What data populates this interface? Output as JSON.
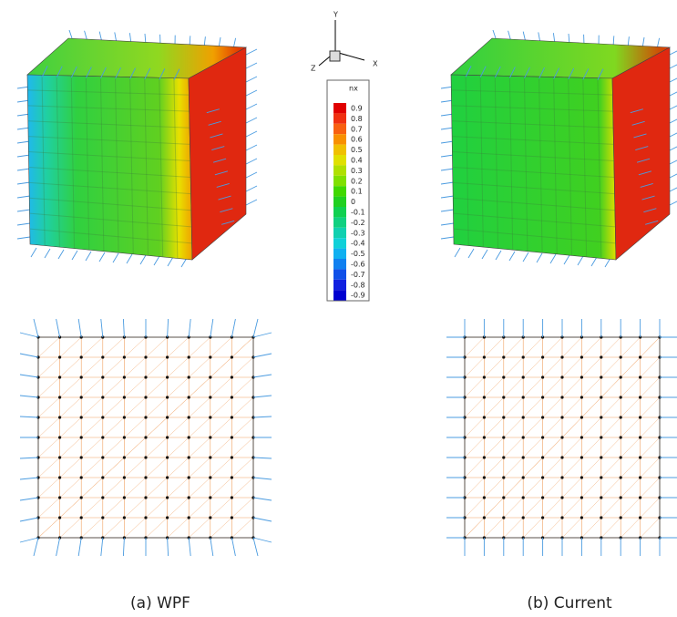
{
  "axes_triad": {
    "y": "Y",
    "x": "X",
    "z": "Z"
  },
  "legend": {
    "title": "nx",
    "levels": [
      0.9,
      0.8,
      0.7,
      0.6,
      0.5,
      0.4,
      0.3,
      0.2,
      0.1,
      0,
      -0.1,
      -0.2,
      -0.3,
      -0.4,
      -0.5,
      -0.6,
      -0.7,
      -0.8,
      -0.9
    ],
    "colors": [
      "#e00000",
      "#f03010",
      "#f86010",
      "#f89000",
      "#f0c000",
      "#e0e000",
      "#b0e000",
      "#80e000",
      "#40d800",
      "#20d020",
      "#10d050",
      "#10d080",
      "#10d0b0",
      "#10d0d8",
      "#10b0f0",
      "#1080f0",
      "#1050e8",
      "#1020e0",
      "#0000d0"
    ]
  },
  "captions": [
    "(a) WPF",
    "(b) Current"
  ]
}
